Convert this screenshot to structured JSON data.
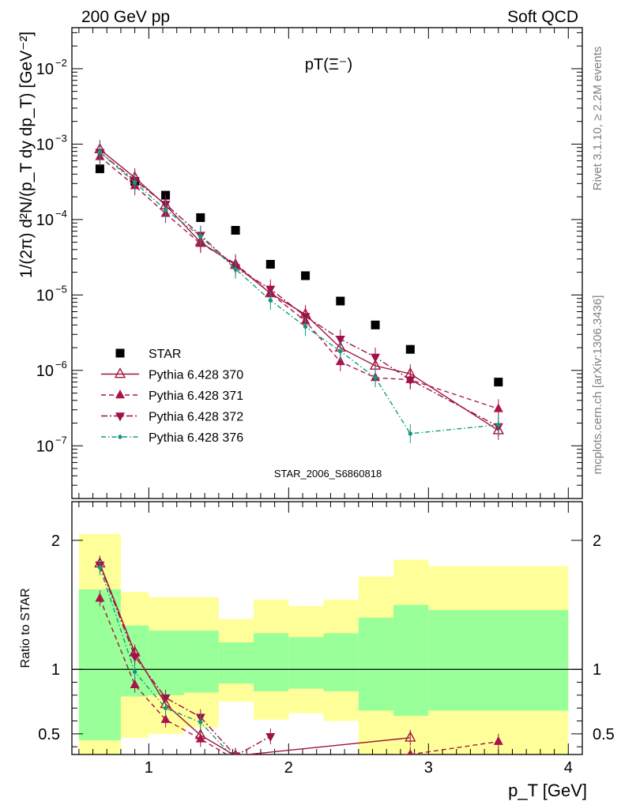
{
  "header": {
    "left": "200 GeV pp",
    "right": "Soft QCD"
  },
  "side_text": {
    "top": "Rivet 3.1.10, ≥ 2.2M events",
    "bottom": "mcplots.cern.ch [arXiv:1306.3436]"
  },
  "watermark": "STAR_2006_S6860818",
  "colors": {
    "star": "#000000",
    "p370": "#a0163b",
    "p371": "#a8154b",
    "p372": "#a0104a",
    "p376": "#129a80",
    "band_outer": "#ffff99",
    "band_inner": "#99ff99"
  },
  "chart_data": [
    {
      "type": "scatter",
      "title": "pT(Ξ⁻)",
      "ylabel": "1/(2π) d²N/(p_T dy dp_T) [GeV⁻²]",
      "xlim": [
        0.45,
        4.1
      ],
      "ylim": [
        2e-08,
        0.035
      ],
      "yscale": "log",
      "yticks": [
        {
          "value": 1e-07,
          "mant": "10",
          "exp": "−7"
        },
        {
          "value": 1e-06,
          "mant": "10",
          "exp": "−6"
        },
        {
          "value": 1e-05,
          "mant": "10",
          "exp": "−5"
        },
        {
          "value": 0.0001,
          "mant": "10",
          "exp": "−4"
        },
        {
          "value": 0.001,
          "mant": "10",
          "exp": "−3"
        },
        {
          "value": 0.01,
          "mant": "10",
          "exp": "−2"
        }
      ],
      "legend_position": "bottom-left",
      "series": [
        {
          "name": "STAR",
          "style": "square",
          "color": "#000000",
          "x": [
            0.65,
            0.9,
            1.12,
            1.37,
            1.62,
            1.87,
            2.12,
            2.37,
            2.62,
            2.87,
            3.5
          ],
          "y": [
            0.00047,
            0.00032,
            0.00021,
            0.000106,
            7.2e-05,
            2.55e-05,
            1.8e-05,
            8.3e-06,
            4e-06,
            1.9e-06,
            7e-07
          ]
        },
        {
          "name": "Pythia 6.428 370",
          "style": "open-tri-up",
          "dash": "solid",
          "color": "#a0163b",
          "x": [
            0.65,
            0.9,
            1.12,
            1.37,
            1.62,
            1.87,
            2.12,
            2.37,
            2.62,
            2.87,
            3.5
          ],
          "y": [
            0.00085,
            0.00036,
            0.000155,
            5e-05,
            2.5e-05,
            1.05e-05,
            5.5e-06,
            2e-06,
            1.15e-06,
            9e-07,
            1.6e-07
          ]
        },
        {
          "name": "Pythia 6.428 371",
          "style": "tri-up",
          "dash": "6,4",
          "color": "#a8154b",
          "x": [
            0.65,
            0.9,
            1.12,
            1.37,
            1.62,
            1.87,
            2.12,
            2.37,
            2.62,
            2.87,
            3.5
          ],
          "y": [
            0.00068,
            0.00028,
            0.00012,
            4.8e-05,
            2.6e-05,
            1.05e-05,
            4.5e-06,
            1.3e-06,
            8e-07,
            7.5e-07,
            3.1e-07
          ]
        },
        {
          "name": "Pythia 6.428 372",
          "style": "tri-down",
          "dash": "8,3,2,3",
          "color": "#a0104a",
          "x": [
            0.65,
            0.9,
            1.12,
            1.37,
            1.62,
            1.87,
            2.12,
            2.37,
            2.62,
            2.87,
            3.5
          ],
          "y": [
            0.00078,
            0.00033,
            0.00016,
            6.2e-05,
            2.3e-05,
            1.2e-05,
            5.2e-06,
            2.6e-06,
            1.5e-06,
            7.5e-07,
            1.8e-07
          ]
        },
        {
          "name": "Pythia 6.428 376",
          "style": "dot",
          "dash": "6,3,1.5,3",
          "color": "#129a80",
          "x": [
            0.65,
            0.9,
            1.12,
            1.37,
            1.62,
            1.87,
            2.12,
            2.37,
            2.62,
            2.87,
            3.5
          ],
          "y": [
            0.00078,
            0.00031,
            0.000135,
            6e-05,
            2.2e-05,
            8.5e-06,
            3.8e-06,
            1.8e-06,
            8e-07,
            1.45e-07,
            1.9e-07
          ]
        }
      ]
    },
    {
      "type": "line",
      "ylabel": "Ratio to STAR",
      "xlabel": "p_T [GeV]",
      "xlim": [
        0.45,
        4.1
      ],
      "ylim": [
        0.34,
        2.3
      ],
      "xticks": [
        1,
        2,
        3,
        4
      ],
      "yticks": [
        0.5,
        1,
        2
      ],
      "reference": 1,
      "bands": [
        {
          "x0": 0.5,
          "x1": 0.8,
          "lo": 0.0,
          "hi": 2.05,
          "lo_in": 0.45,
          "hi_in": 1.62
        },
        {
          "x0": 0.8,
          "x1": 1.0,
          "lo": 0.47,
          "hi": 1.6,
          "lo_in": 0.79,
          "hi_in": 1.34
        },
        {
          "x0": 1.0,
          "x1": 1.25,
          "lo": 0.5,
          "hi": 1.56,
          "lo_in": 0.8,
          "hi_in": 1.3
        },
        {
          "x0": 1.25,
          "x1": 1.5,
          "lo": 0.55,
          "hi": 1.56,
          "lo_in": 0.82,
          "hi_in": 1.3
        },
        {
          "x0": 1.5,
          "x1": 1.75,
          "lo": 0.75,
          "hi": 1.39,
          "lo_in": 0.89,
          "hi_in": 1.21
        },
        {
          "x0": 1.75,
          "x1": 2.0,
          "lo": 0.61,
          "hi": 1.54,
          "lo_in": 0.83,
          "hi_in": 1.28
        },
        {
          "x0": 2.0,
          "x1": 2.25,
          "lo": 0.66,
          "hi": 1.49,
          "lo_in": 0.85,
          "hi_in": 1.25
        },
        {
          "x0": 2.25,
          "x1": 2.5,
          "lo": 0.6,
          "hi": 1.54,
          "lo_in": 0.83,
          "hi_in": 1.28
        },
        {
          "x0": 2.5,
          "x1": 2.75,
          "lo": 0.0,
          "hi": 1.72,
          "lo_in": 0.68,
          "hi_in": 1.4
        },
        {
          "x0": 2.75,
          "x1": 3.0,
          "lo": 0.0,
          "hi": 1.85,
          "lo_in": 0.64,
          "hi_in": 1.5
        },
        {
          "x0": 3.0,
          "x1": 4.0,
          "lo": 0.0,
          "hi": 1.8,
          "lo_in": 0.68,
          "hi_in": 1.46
        }
      ],
      "series": [
        {
          "name": "Pythia 6.428 370",
          "x": [
            0.65,
            0.9,
            1.12,
            1.37,
            1.62,
            2.87
          ],
          "y": [
            1.82,
            1.13,
            0.73,
            0.49,
            0.33,
            0.47
          ]
        },
        {
          "name": "Pythia 6.428 371",
          "x": [
            0.65,
            0.9,
            1.12,
            1.37,
            1.62,
            2.87,
            3.5
          ],
          "y": [
            1.55,
            0.88,
            0.61,
            0.46,
            0.3,
            0.34,
            0.44
          ]
        },
        {
          "name": "Pythia 6.428 372",
          "x": [
            0.65,
            0.9,
            1.12,
            1.37,
            1.62,
            1.87
          ],
          "y": [
            1.81,
            1.1,
            0.78,
            0.63,
            0.33,
            0.48
          ]
        },
        {
          "name": "Pythia 6.428 376",
          "x": [
            0.65,
            0.9,
            1.12,
            1.37,
            1.62
          ],
          "y": [
            1.79,
            0.98,
            0.7,
            0.59,
            0.3
          ]
        }
      ]
    }
  ]
}
